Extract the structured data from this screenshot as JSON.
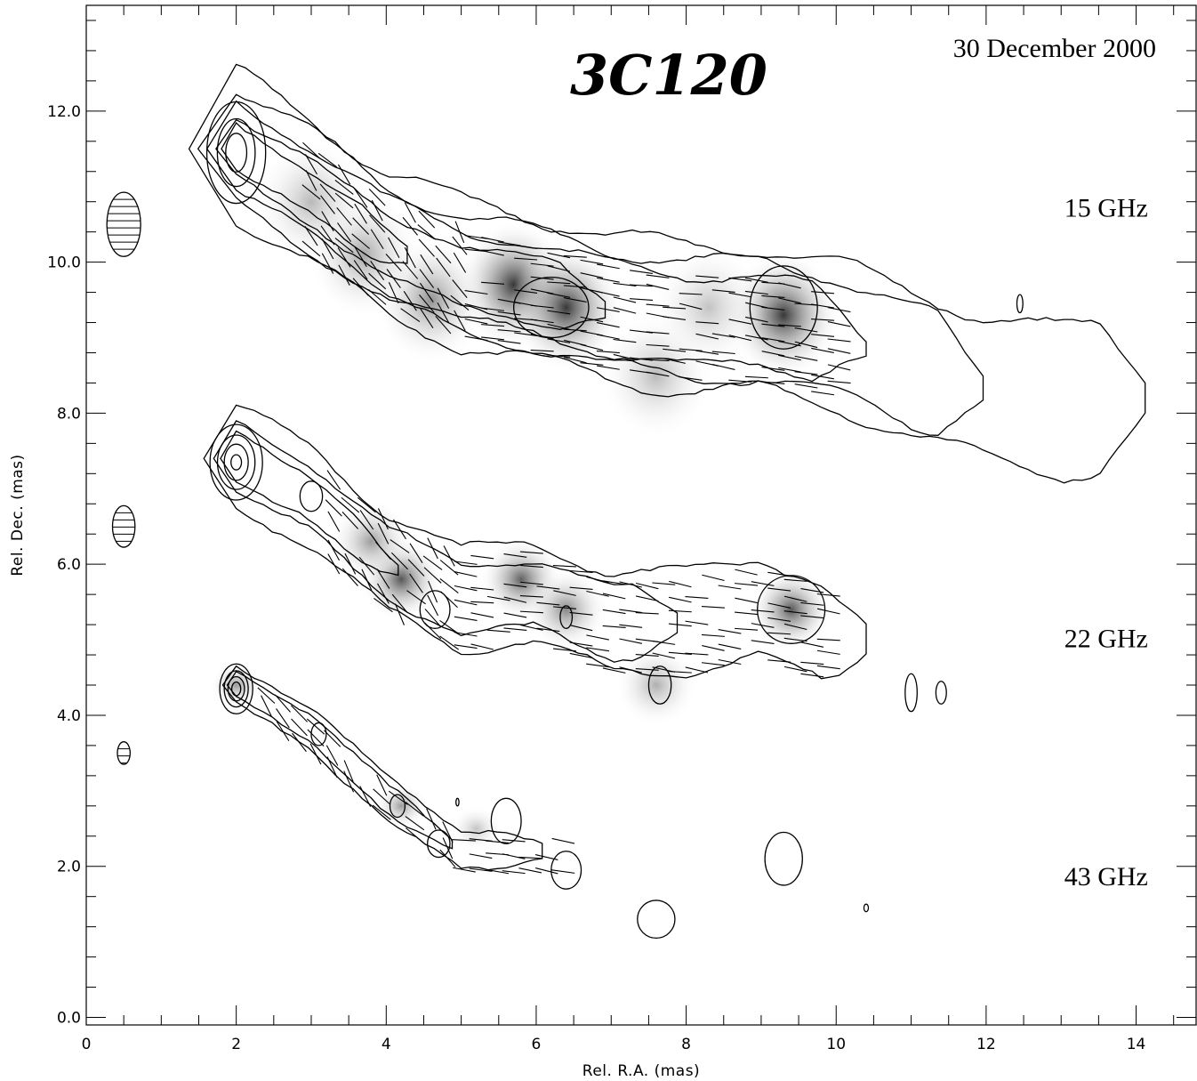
{
  "chart_data": {
    "type": "contour",
    "title": "3C120",
    "date": "30 December 2000",
    "xlabel": "Rel. R.A. (mas)",
    "ylabel": "Rel. Dec. (mas)",
    "xlim": [
      0,
      14.8
    ],
    "ylim": [
      -0.1,
      13.4
    ],
    "xticks": [
      0,
      2,
      4,
      6,
      8,
      10,
      12,
      14
    ],
    "xtick_labels": [
      "0",
      "2",
      "4",
      "6",
      "8",
      "10",
      "12",
      "14"
    ],
    "yticks": [
      0,
      2,
      4,
      6,
      8,
      10,
      12
    ],
    "ytick_labels": [
      "0.0",
      "2.0",
      "4.0",
      "6.0",
      "8.0",
      "10.0",
      "12.0"
    ],
    "x_minor_step": 0.5,
    "y_minor_step": 0.4,
    "grid": false,
    "shading": "polarized intensity (grayscale)",
    "contours": "total intensity",
    "vectors": "EVPA ticks",
    "series": [
      {
        "name": "15 GHz",
        "label_pos": [
          13.6,
          10.6
        ],
        "beam": {
          "x": 0.5,
          "y": 10.5,
          "major": 0.85,
          "minor": 0.45
        },
        "core": [
          2.0,
          11.5
        ],
        "ridge": [
          [
            2.0,
            11.5
          ],
          [
            3.0,
            10.9
          ],
          [
            4.0,
            10.2
          ],
          [
            5.0,
            9.8
          ],
          [
            6.0,
            9.6
          ],
          [
            7.0,
            9.35
          ],
          [
            8.0,
            9.2
          ],
          [
            9.0,
            9.2
          ],
          [
            10.0,
            9.0
          ],
          [
            11.0,
            8.6
          ],
          [
            12.0,
            8.3
          ],
          [
            13.0,
            8.1
          ],
          [
            14.2,
            8.2
          ]
        ],
        "pol_peaks": [
          [
            5.7,
            9.7,
            1.0
          ],
          [
            6.4,
            9.4,
            1.0
          ],
          [
            9.3,
            9.3,
            1.0
          ],
          [
            4.6,
            9.5,
            0.55
          ],
          [
            3.7,
            10.1,
            0.45
          ],
          [
            3.0,
            10.8,
            0.35
          ],
          [
            7.6,
            8.5,
            0.35
          ],
          [
            8.3,
            9.4,
            0.3
          ]
        ]
      },
      {
        "name": "22 GHz",
        "label_pos": [
          13.6,
          4.9
        ],
        "beam": {
          "x": 0.5,
          "y": 6.5,
          "major": 0.55,
          "minor": 0.3
        },
        "core": [
          2.0,
          7.4
        ],
        "ridge": [
          [
            2.0,
            7.4
          ],
          [
            3.0,
            6.85
          ],
          [
            4.0,
            6.0
          ],
          [
            5.0,
            5.5
          ],
          [
            6.0,
            5.6
          ],
          [
            7.0,
            5.2
          ],
          [
            8.0,
            5.2
          ],
          [
            9.0,
            5.4
          ],
          [
            10.0,
            5.0
          ]
        ],
        "pol_peaks": [
          [
            4.2,
            5.8,
            0.85
          ],
          [
            5.8,
            5.8,
            0.8
          ],
          [
            6.4,
            5.4,
            0.6
          ],
          [
            9.4,
            5.4,
            0.85
          ],
          [
            3.8,
            6.3,
            0.5
          ],
          [
            7.6,
            4.4,
            0.4
          ]
        ]
      },
      {
        "name": "43 GHz",
        "label_pos": [
          13.6,
          1.75
        ],
        "beam": {
          "x": 0.5,
          "y": 3.5,
          "major": 0.3,
          "minor": 0.17
        },
        "core": [
          2.0,
          4.4
        ],
        "ridge": [
          [
            2.0,
            4.4
          ],
          [
            3.0,
            3.8
          ],
          [
            4.0,
            2.9
          ],
          [
            5.0,
            2.2
          ],
          [
            6.0,
            2.2
          ]
        ],
        "pol_peaks": [
          [
            2.0,
            4.4,
            0.5
          ],
          [
            4.2,
            2.8,
            0.5
          ],
          [
            5.2,
            2.5,
            0.3
          ]
        ]
      }
    ]
  }
}
